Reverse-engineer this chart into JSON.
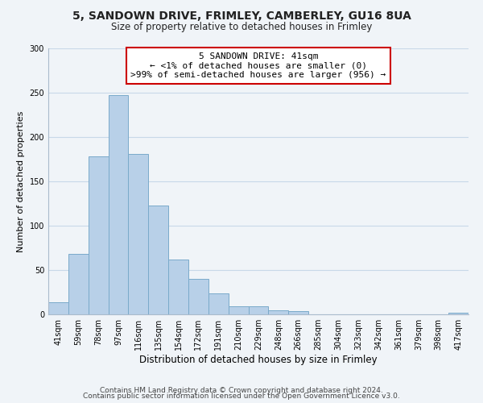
{
  "title": "5, SANDOWN DRIVE, FRIMLEY, CAMBERLEY, GU16 8UA",
  "subtitle": "Size of property relative to detached houses in Frimley",
  "xlabel": "Distribution of detached houses by size in Frimley",
  "ylabel": "Number of detached properties",
  "categories": [
    "41sqm",
    "59sqm",
    "78sqm",
    "97sqm",
    "116sqm",
    "135sqm",
    "154sqm",
    "172sqm",
    "191sqm",
    "210sqm",
    "229sqm",
    "248sqm",
    "266sqm",
    "285sqm",
    "304sqm",
    "323sqm",
    "342sqm",
    "361sqm",
    "379sqm",
    "398sqm",
    "417sqm"
  ],
  "values": [
    14,
    68,
    178,
    247,
    181,
    123,
    62,
    40,
    24,
    9,
    9,
    5,
    4,
    0,
    0,
    0,
    0,
    0,
    0,
    0,
    2
  ],
  "bar_color": "#b8d0e8",
  "bar_edge_color": "#7aaaca",
  "annotation_line1": "5 SANDOWN DRIVE: 41sqm",
  "annotation_line2": "← <1% of detached houses are smaller (0)",
  "annotation_line3": ">99% of semi-detached houses are larger (956) →",
  "annotation_box_color": "#ffffff",
  "annotation_box_edge_color": "#cc0000",
  "ylim": [
    0,
    300
  ],
  "yticks": [
    0,
    50,
    100,
    150,
    200,
    250,
    300
  ],
  "footer_line1": "Contains HM Land Registry data © Crown copyright and database right 2024.",
  "footer_line2": "Contains public sector information licensed under the Open Government Licence v3.0.",
  "background_color": "#f0f4f8",
  "plot_bg_color": "#f0f4f8",
  "grid_color": "#c8d8e8",
  "title_fontsize": 10,
  "subtitle_fontsize": 8.5,
  "xlabel_fontsize": 8.5,
  "ylabel_fontsize": 8,
  "tick_fontsize": 7,
  "annotation_fontsize": 8,
  "footer_fontsize": 6.5
}
